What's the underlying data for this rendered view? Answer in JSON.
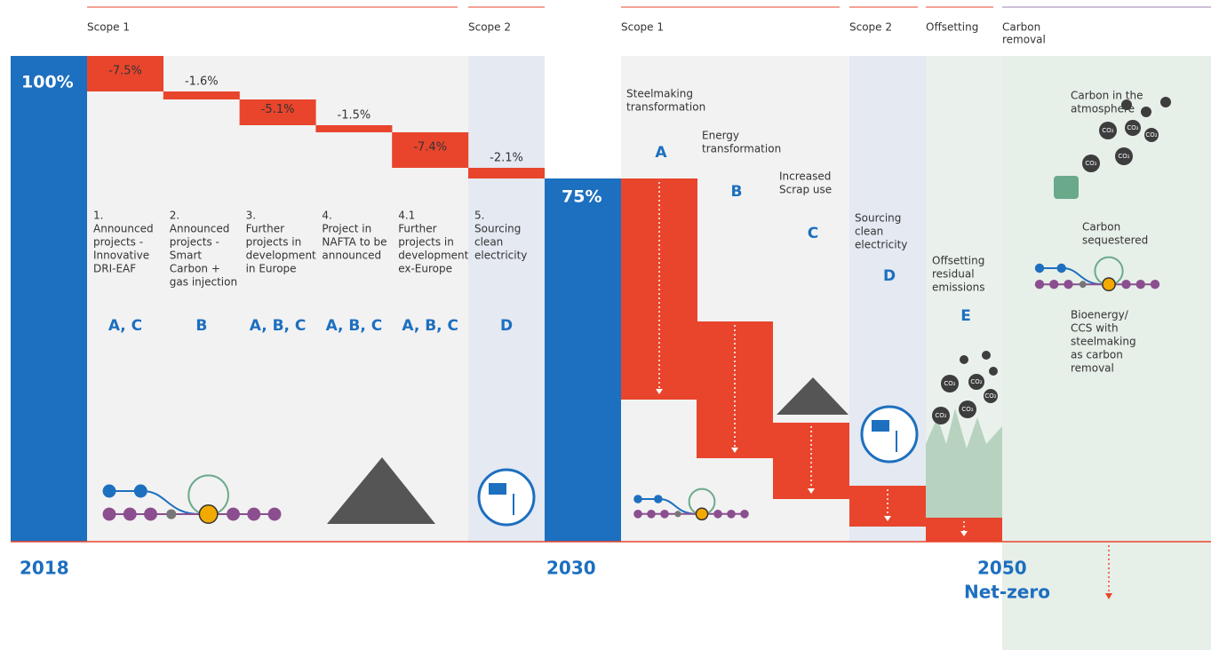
{
  "top_labels": [
    [
      "Scope 1"
    ],
    [
      "Scope 2"
    ],
    [
      "Scope 1"
    ],
    [
      "Scope 2"
    ],
    [
      "Offsetting"
    ],
    [
      "Carbon",
      "removal"
    ]
  ],
  "start": {
    "value": "100%",
    "year": "2018"
  },
  "steps": [
    {
      "change": "-7.5%",
      "description": [
        "1.",
        "Announced",
        "projects -",
        "Innovative",
        "DRI-EAF"
      ],
      "levers": "A, C"
    },
    {
      "change": "-1.6%",
      "description": [
        "2.",
        "Announced",
        "projects -",
        "Smart",
        "Carbon +",
        "gas injection"
      ],
      "levers": "B"
    },
    {
      "change": "-5.1%",
      "description": [
        "3.",
        "Further",
        "projects in",
        "development",
        "in Europe"
      ],
      "levers": "A, B, C"
    },
    {
      "change": "-1.5%",
      "description": [
        "4.",
        "Project in",
        "NAFTA to be",
        "announced"
      ],
      "levers": "A, B, C"
    },
    {
      "change": "-7.4%",
      "description": [
        "4.1",
        "Further",
        "projects in",
        "development",
        "ex-Europe"
      ],
      "levers": "A, B, C"
    },
    {
      "change": "-2.1%",
      "description": [
        "5.",
        "Sourcing",
        "clean",
        "electricity"
      ],
      "levers": "D"
    }
  ],
  "mid": {
    "value": "75%",
    "year": "2030"
  },
  "levers_2050": [
    {
      "title": [
        "Steelmaking",
        "transformation"
      ],
      "letter": "A"
    },
    {
      "title": [
        "Energy",
        "transformation"
      ],
      "letter": "B"
    },
    {
      "title": [
        "Increased",
        "Scrap use"
      ],
      "letter": "C"
    },
    {
      "title": [
        "Sourcing",
        "clean",
        "electricity"
      ],
      "letter": "D"
    },
    {
      "title": [
        "Offsetting",
        "residual",
        "emissions"
      ],
      "letter": "E"
    }
  ],
  "end": {
    "year": "2050",
    "label": "Net-zero"
  },
  "carbon_removal": {
    "atmosphere": [
      "Carbon in the",
      "atmosphere"
    ],
    "sequestered": [
      "Carbon",
      "sequestered"
    ],
    "description": [
      "Bioenergy/",
      "CCS with",
      "steelmaking",
      "as carbon",
      "removal"
    ]
  },
  "co2": "CO₂"
}
